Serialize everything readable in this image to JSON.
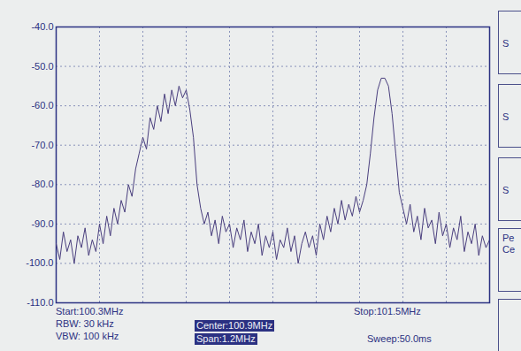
{
  "chart_data": {
    "type": "line",
    "x": [
      100.3,
      100.31,
      100.32,
      100.33,
      100.34,
      100.35,
      100.36,
      100.37,
      100.38,
      100.39,
      100.4,
      100.41,
      100.42,
      100.43,
      100.44,
      100.45,
      100.46,
      100.47,
      100.48,
      100.49,
      100.5,
      100.51,
      100.52,
      100.53,
      100.54,
      100.55,
      100.56,
      100.57,
      100.58,
      100.59,
      100.6,
      100.61,
      100.62,
      100.63,
      100.64,
      100.65,
      100.66,
      100.67,
      100.68,
      100.69,
      100.7,
      100.71,
      100.72,
      100.73,
      100.74,
      100.75,
      100.76,
      100.77,
      100.78,
      100.79,
      100.8,
      100.81,
      100.82,
      100.83,
      100.84,
      100.85,
      100.86,
      100.87,
      100.88,
      100.89,
      100.9,
      100.91,
      100.92,
      100.93,
      100.94,
      100.95,
      100.96,
      100.97,
      100.98,
      100.99,
      101.0,
      101.01,
      101.02,
      101.03,
      101.04,
      101.05,
      101.06,
      101.07,
      101.08,
      101.09,
      101.1,
      101.11,
      101.12,
      101.13,
      101.14,
      101.15,
      101.16,
      101.17,
      101.18,
      101.19,
      101.2,
      101.21,
      101.22,
      101.23,
      101.24,
      101.25,
      101.26,
      101.27,
      101.28,
      101.29,
      101.3,
      101.31,
      101.32,
      101.33,
      101.34,
      101.35,
      101.36,
      101.37,
      101.38,
      101.39,
      101.4,
      101.41,
      101.42,
      101.43,
      101.44,
      101.45,
      101.46,
      101.47,
      101.48,
      101.49,
      101.5
    ],
    "series": [
      {
        "color": "#4a3f7e",
        "values": [
          -95,
          -99,
          -92,
          -97,
          -94,
          -100,
          -93,
          -96,
          -91,
          -98,
          -94,
          -97,
          -90,
          -95,
          -88,
          -93,
          -86,
          -90,
          -84,
          -87,
          -80,
          -83,
          -76,
          -72,
          -68,
          -71,
          -63,
          -66,
          -60,
          -64,
          -57,
          -62,
          -56,
          -60,
          -55,
          -58,
          -56,
          -61,
          -68,
          -80,
          -86,
          -90,
          -87,
          -93,
          -89,
          -95,
          -88,
          -92,
          -90,
          -96,
          -91,
          -94,
          -89,
          -97,
          -92,
          -95,
          -90,
          -98,
          -93,
          -96,
          -92,
          -99,
          -94,
          -96,
          -91,
          -97,
          -93,
          -100,
          -95,
          -92,
          -96,
          -93,
          -98,
          -90,
          -94,
          -88,
          -92,
          -86,
          -90,
          -84,
          -89,
          -85,
          -88,
          -83,
          -87,
          -84,
          -80,
          -72,
          -63,
          -56,
          -53,
          -53,
          -55,
          -62,
          -72,
          -82,
          -86,
          -90,
          -85,
          -92,
          -88,
          -94,
          -86,
          -91,
          -89,
          -95,
          -87,
          -93,
          -90,
          -96,
          -91,
          -94,
          -88,
          -97,
          -92,
          -95,
          -90,
          -98,
          -93,
          -96,
          -94
        ]
      }
    ],
    "xlim": [
      100.3,
      101.5
    ],
    "xticks": [
      100.3,
      100.42,
      100.54,
      100.66,
      100.78,
      100.9,
      101.02,
      101.14,
      101.26,
      101.38,
      101.5
    ],
    "ylim": [
      -110,
      -40
    ],
    "yticks": [
      {
        "value": -110,
        "label": "-110.0"
      },
      {
        "value": -100,
        "label": "-100.0"
      },
      {
        "value": -90,
        "label": "-90.0"
      },
      {
        "value": -80,
        "label": "-80.0"
      },
      {
        "value": -70,
        "label": "-70.0"
      },
      {
        "value": -60,
        "label": "-60.0"
      },
      {
        "value": -50,
        "label": "-50.0"
      },
      {
        "value": -40,
        "label": "-40.0"
      }
    ],
    "grid": true,
    "tick_labels": "y",
    "annotations": [
      "Start:100.3MHz",
      "RBW: 30 kHz",
      "VBW: 100 kHz",
      "Center:100.9MHz",
      "Span:1.2MHz",
      "Stop:101.5MHz",
      "Sweep:50.0ms"
    ],
    "softkeys": [
      [
        "S"
      ],
      [
        "S"
      ],
      [
        "S"
      ],
      [
        "Pe",
        "Ce"
      ]
    ]
  }
}
